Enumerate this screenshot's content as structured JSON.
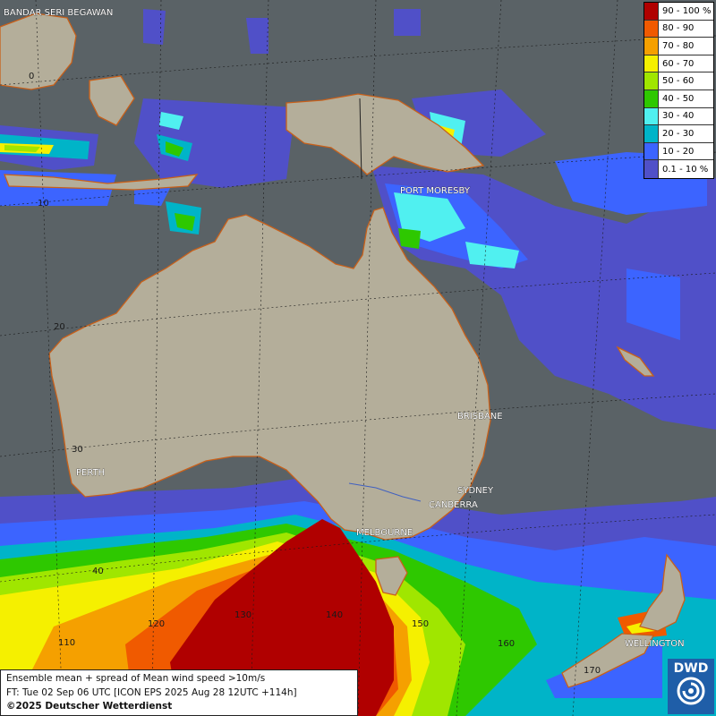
{
  "legend": {
    "items": [
      {
        "label": "90 - 100 %",
        "color": "#b00000"
      },
      {
        "label": "80 - 90",
        "color": "#f05a00"
      },
      {
        "label": "70 - 80",
        "color": "#f5a000"
      },
      {
        "label": "60 - 70",
        "color": "#f5f000"
      },
      {
        "label": "50 - 60",
        "color": "#a0e600"
      },
      {
        "label": "40 - 50",
        "color": "#2ec800"
      },
      {
        "label": "30 - 40",
        "color": "#50f0f0"
      },
      {
        "label": "20 - 30",
        "color": "#00b4c8"
      },
      {
        "label": "10 - 20",
        "color": "#3c64ff"
      },
      {
        "label": "0.1 - 10 %",
        "color": "#5050c8"
      }
    ]
  },
  "cities": {
    "bandar": "BANDAR SERI BEGAWAN",
    "port_moresby": "PORT MORESBY",
    "perth": "PERTH",
    "brisbane": "BRISBANE",
    "sydney": "SYDNEY",
    "canberra": "CANBERRA",
    "melbourne": "MELBOURNE",
    "wellington": "WELLINGTON"
  },
  "grid_labels": {
    "lat_0": "0",
    "lat_10": "10",
    "lat_20": "20",
    "lat_30": "30",
    "lat_40": "40",
    "lon_110": "110",
    "lon_120": "120",
    "lon_130": "130",
    "lon_140": "140",
    "lon_150": "150",
    "lon_160": "160",
    "lon_170": "170"
  },
  "info": {
    "line1": "Ensemble mean + spread of Mean wind speed >10m/s",
    "line2": "FT: Tue 02 Sep 06 UTC [ICON EPS 2025 Aug 28 12UTC +114h]",
    "line3": "©2025 Deutscher Wetterdienst"
  },
  "logo": {
    "text": "DWD",
    "color": "#1f5ea8"
  }
}
